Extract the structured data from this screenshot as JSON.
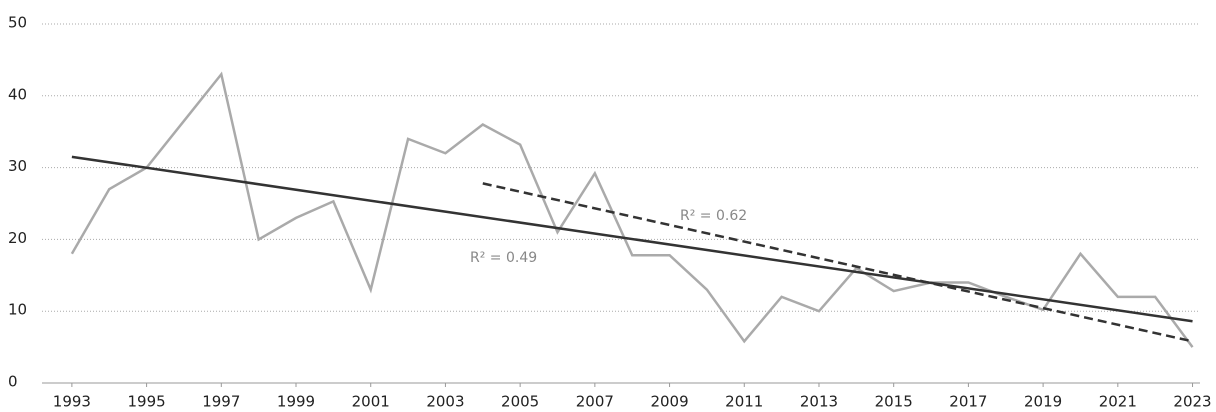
{
  "chart_data": {
    "type": "line",
    "x": [
      1993,
      1994,
      1995,
      1996,
      1997,
      1998,
      1999,
      2000,
      2001,
      2002,
      2003,
      2004,
      2005,
      2006,
      2007,
      2008,
      2009,
      2010,
      2011,
      2012,
      2013,
      2014,
      2015,
      2016,
      2017,
      2018,
      2019,
      2020,
      2021,
      2022,
      2023
    ],
    "series": [
      {
        "color": "#aaaaaa",
        "values": [
          18,
          27,
          30,
          36.5,
          43,
          20,
          23,
          25.3,
          13,
          34,
          32,
          36,
          33.2,
          21,
          29.2,
          17.8,
          17.8,
          13,
          5.8,
          12,
          10,
          16,
          12.8,
          14,
          14,
          12,
          10.2,
          18,
          12,
          12,
          5
        ]
      },
      {
        "color": "#333333",
        "x": [
          1993,
          2023
        ],
        "values": [
          31.5,
          8.6
        ]
      },
      {
        "color": "#333333",
        "dashed": true,
        "x": [
          2004,
          2023
        ],
        "values": [
          27.8,
          5.8
        ]
      }
    ],
    "annotations": [
      "R² = 0.62",
      "R² = 0.49"
    ],
    "xlim": [
      1992.2,
      2023.2
    ],
    "xticks": [
      1993,
      1995,
      1997,
      1999,
      2001,
      2003,
      2005,
      2007,
      2009,
      2011,
      2013,
      2015,
      2017,
      2019,
      2021,
      2023
    ],
    "ylim": [
      0,
      50
    ],
    "yticks": [
      0,
      10,
      20,
      30,
      40,
      50
    ],
    "grid": true
  }
}
